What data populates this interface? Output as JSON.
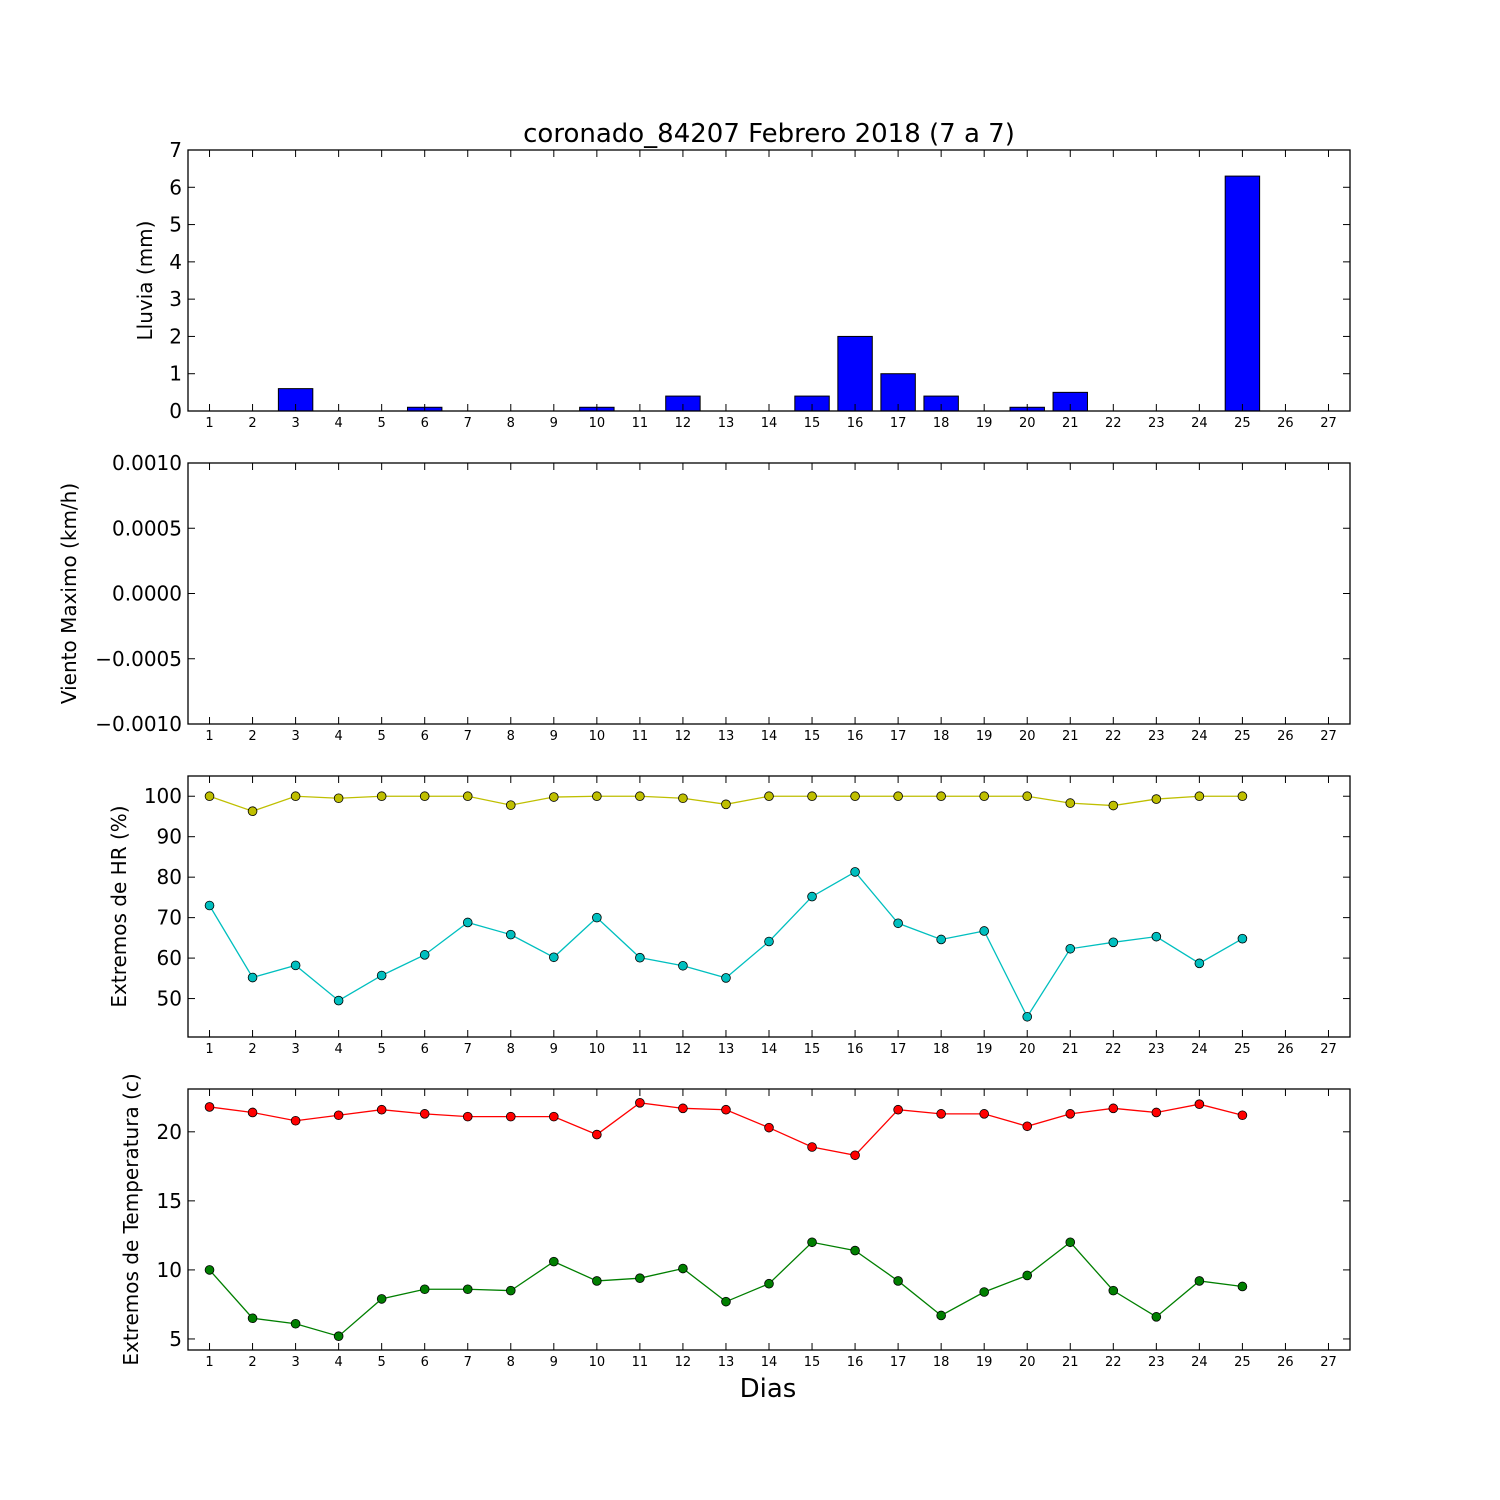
{
  "title": "coronado_84207 Febrero 2018  (7 a 7)",
  "chart_data": [
    {
      "type": "bar",
      "ylabel": "Lluvia (mm)",
      "xlabel": "",
      "ylim": [
        0,
        7
      ],
      "xlim": [
        0.5,
        27.5
      ],
      "yticks": [
        0,
        1,
        2,
        3,
        4,
        5,
        6,
        7
      ],
      "ytick_labels": [
        "0",
        "1",
        "2",
        "3",
        "4",
        "5",
        "6",
        "7"
      ],
      "xticks": [
        1,
        2,
        3,
        4,
        5,
        6,
        7,
        8,
        9,
        10,
        11,
        12,
        13,
        14,
        15,
        16,
        17,
        18,
        19,
        20,
        21,
        22,
        23,
        24,
        25,
        26,
        27
      ],
      "xtick_labels": [
        "1",
        "2",
        "3",
        "4",
        "5",
        "6",
        "7",
        "8",
        "9",
        "10",
        "11",
        "12",
        "13",
        "14",
        "15",
        "16",
        "17",
        "18",
        "19",
        "20",
        "21",
        "22",
        "23",
        "24",
        "25",
        "26",
        "27"
      ],
      "x": [
        1,
        2,
        3,
        4,
        5,
        6,
        7,
        8,
        9,
        10,
        11,
        12,
        13,
        14,
        15,
        16,
        17,
        18,
        19,
        20,
        21,
        22,
        23,
        24,
        25
      ],
      "values": [
        0,
        0,
        0.6,
        0,
        0,
        0.1,
        0,
        0,
        0,
        0.1,
        0,
        0.4,
        0,
        0,
        0.4,
        2.0,
        1.0,
        0.4,
        0,
        0.1,
        0.5,
        0,
        0,
        0,
        6.3
      ],
      "color": "#0000ff",
      "grid": false
    },
    {
      "type": "line",
      "ylabel": "Viento Maximo (km/h)",
      "xlabel": "",
      "ylim": [
        -0.001,
        0.001
      ],
      "xlim": [
        0.5,
        27.5
      ],
      "yticks": [
        -0.001,
        -0.0005,
        0,
        0.0005,
        0.001
      ],
      "ytick_labels": [
        "−0.0010",
        "−0.0005",
        "0.0000",
        "0.0005",
        "0.0010"
      ],
      "xticks": [
        1,
        2,
        3,
        4,
        5,
        6,
        7,
        8,
        9,
        10,
        11,
        12,
        13,
        14,
        15,
        16,
        17,
        18,
        19,
        20,
        21,
        22,
        23,
        24,
        25,
        26,
        27
      ],
      "xtick_labels": [
        "1",
        "2",
        "3",
        "4",
        "5",
        "6",
        "7",
        "8",
        "9",
        "10",
        "11",
        "12",
        "13",
        "14",
        "15",
        "16",
        "17",
        "18",
        "19",
        "20",
        "21",
        "22",
        "23",
        "24",
        "25",
        "26",
        "27"
      ],
      "series": [],
      "grid": false
    },
    {
      "type": "line",
      "ylabel": "Extremos de HR (%)",
      "xlabel": "",
      "ylim": [
        40.5,
        105
      ],
      "xlim": [
        0.5,
        27.5
      ],
      "yticks": [
        50,
        60,
        70,
        80,
        90,
        100
      ],
      "ytick_labels": [
        "50",
        "60",
        "70",
        "80",
        "90",
        "100"
      ],
      "xticks": [
        1,
        2,
        3,
        4,
        5,
        6,
        7,
        8,
        9,
        10,
        11,
        12,
        13,
        14,
        15,
        16,
        17,
        18,
        19,
        20,
        21,
        22,
        23,
        24,
        25,
        26,
        27
      ],
      "xtick_labels": [
        "1",
        "2",
        "3",
        "4",
        "5",
        "6",
        "7",
        "8",
        "9",
        "10",
        "11",
        "12",
        "13",
        "14",
        "15",
        "16",
        "17",
        "18",
        "19",
        "20",
        "21",
        "22",
        "23",
        "24",
        "25",
        "26",
        "27"
      ],
      "x": [
        1,
        2,
        3,
        4,
        5,
        6,
        7,
        8,
        9,
        10,
        11,
        12,
        13,
        14,
        15,
        16,
        17,
        18,
        19,
        20,
        21,
        22,
        23,
        24,
        25
      ],
      "series": [
        {
          "color": "#bfbf00",
          "values": [
            100,
            96.3,
            100,
            99.5,
            100,
            100,
            100,
            97.8,
            99.8,
            100,
            100,
            99.5,
            98,
            100,
            100,
            100,
            100,
            100,
            100,
            100,
            98.3,
            97.7,
            99.3,
            100,
            100
          ]
        },
        {
          "color": "#00bfbf",
          "values": [
            73,
            55.2,
            58.2,
            49.5,
            55.7,
            60.8,
            68.8,
            65.8,
            60.2,
            70,
            60.1,
            58.1,
            55.1,
            64.1,
            75.2,
            81.3,
            68.6,
            64.6,
            66.7,
            45.5,
            62.3,
            63.9,
            65.3,
            58.7,
            64.8
          ]
        }
      ],
      "grid": false
    },
    {
      "type": "line",
      "ylabel": "Extremos de Temperatura (c)",
      "xlabel": "Dias",
      "ylim": [
        4.2,
        23.1
      ],
      "xlim": [
        0.5,
        27.5
      ],
      "yticks": [
        5,
        10,
        15,
        20
      ],
      "ytick_labels": [
        "5",
        "10",
        "15",
        "20"
      ],
      "xticks": [
        1,
        2,
        3,
        4,
        5,
        6,
        7,
        8,
        9,
        10,
        11,
        12,
        13,
        14,
        15,
        16,
        17,
        18,
        19,
        20,
        21,
        22,
        23,
        24,
        25,
        26,
        27
      ],
      "xtick_labels": [
        "1",
        "2",
        "3",
        "4",
        "5",
        "6",
        "7",
        "8",
        "9",
        "10",
        "11",
        "12",
        "13",
        "14",
        "15",
        "16",
        "17",
        "18",
        "19",
        "20",
        "21",
        "22",
        "23",
        "24",
        "25",
        "26",
        "27"
      ],
      "x": [
        1,
        2,
        3,
        4,
        5,
        6,
        7,
        8,
        9,
        10,
        11,
        12,
        13,
        14,
        15,
        16,
        17,
        18,
        19,
        20,
        21,
        22,
        23,
        24,
        25
      ],
      "series": [
        {
          "color": "#ff0000",
          "values": [
            21.8,
            21.4,
            20.8,
            21.2,
            21.6,
            21.3,
            21.1,
            21.1,
            21.1,
            19.8,
            22.1,
            21.7,
            21.6,
            20.3,
            18.9,
            18.3,
            21.6,
            21.3,
            21.3,
            20.4,
            21.3,
            21.7,
            21.4,
            22,
            21.2
          ]
        },
        {
          "color": "#007f00",
          "values": [
            10,
            6.5,
            6.1,
            5.2,
            7.9,
            8.6,
            8.6,
            8.5,
            10.6,
            9.2,
            9.4,
            10.1,
            7.7,
            9,
            12,
            11.4,
            9.2,
            6.7,
            8.4,
            9.6,
            12,
            8.5,
            6.6,
            9.2,
            8.8
          ]
        }
      ],
      "grid": false
    }
  ]
}
